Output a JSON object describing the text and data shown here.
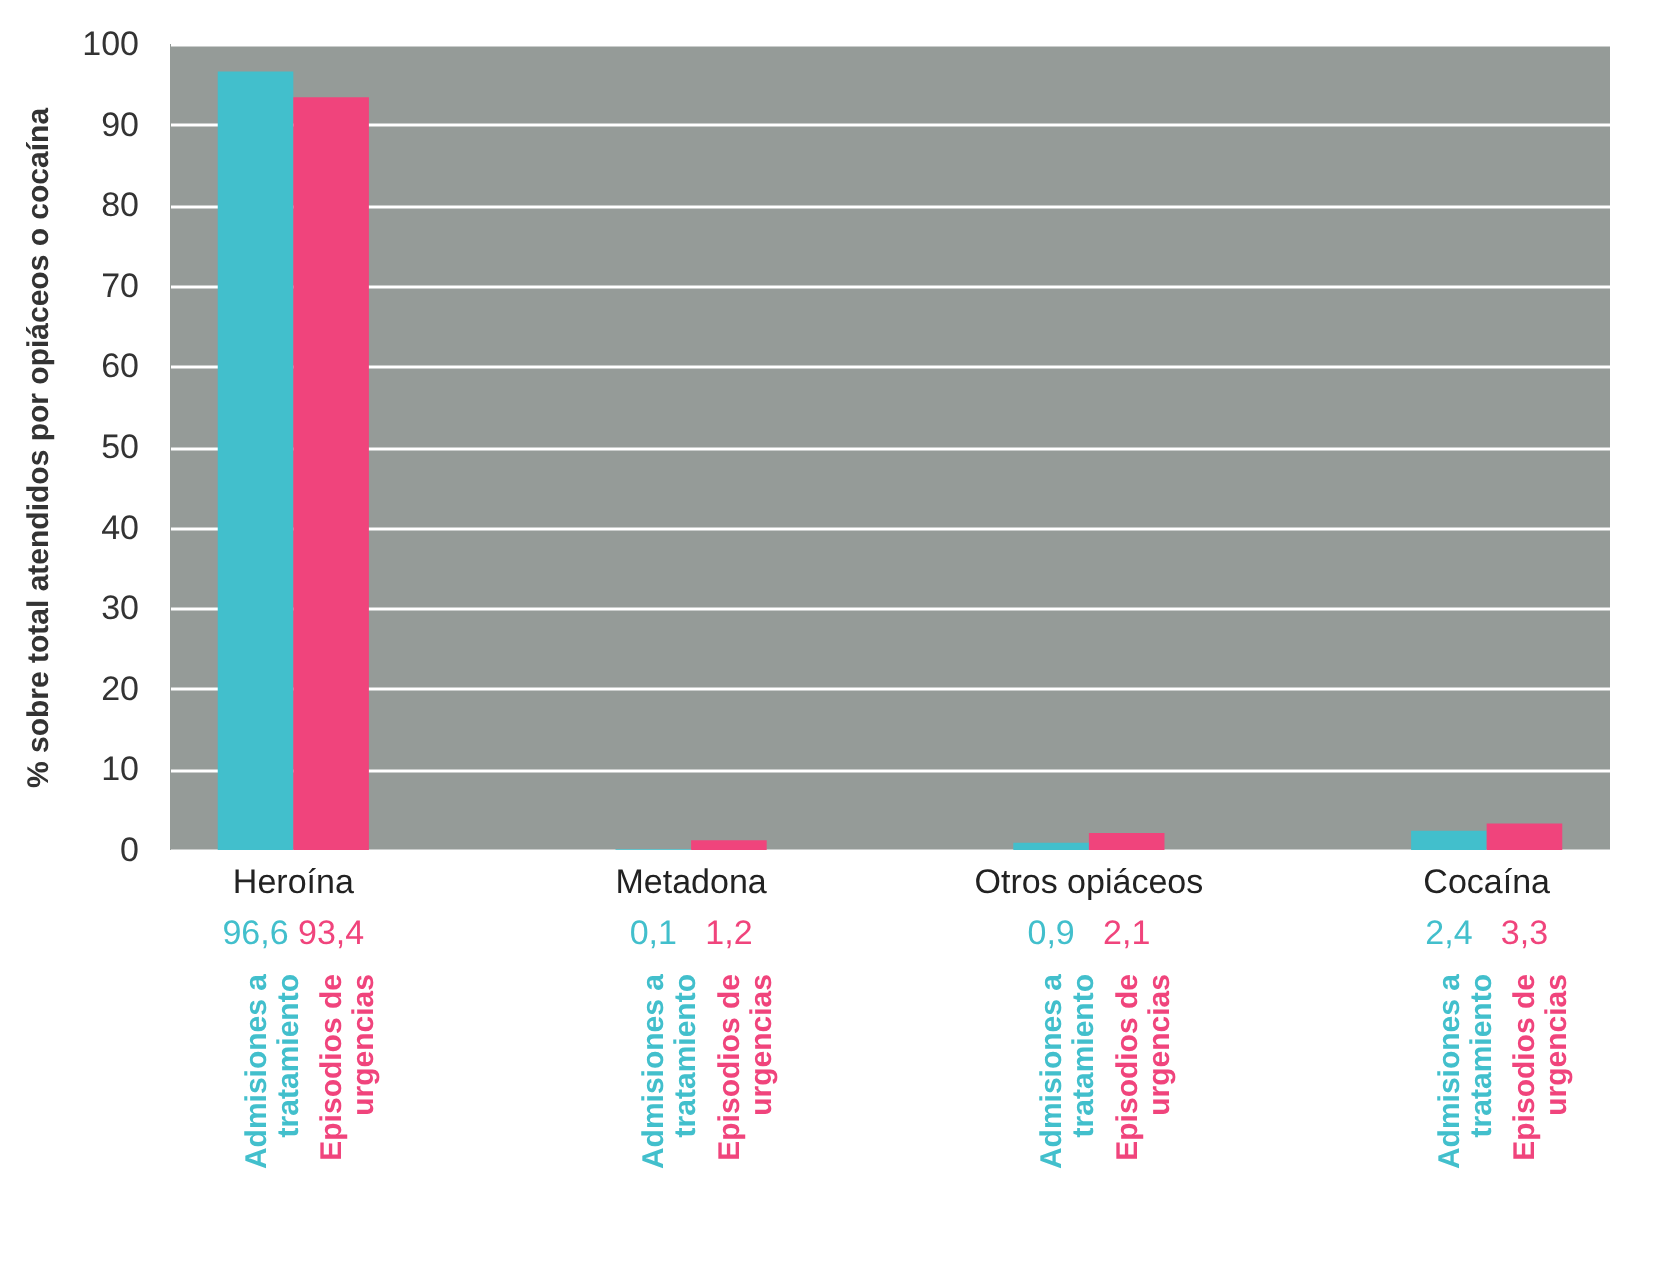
{
  "chart_data": {
    "type": "bar",
    "ylabel": "% sobre total atendidos por opiáceos o cocaína",
    "categories": [
      "Heroína",
      "Metadona",
      "Otros opiáceos",
      "Cocaína"
    ],
    "series": [
      {
        "name": "Admisiones a tratamiento",
        "color": "#42bfcc",
        "values": [
          96.6,
          0.1,
          0.9,
          2.4
        ],
        "value_labels": [
          "96,6",
          "0,1",
          "0,9",
          "2,4"
        ]
      },
      {
        "name": "Episodios de urgencias",
        "color": "#f0447c",
        "values": [
          93.4,
          1.2,
          2.1,
          3.3
        ],
        "value_labels": [
          "93,4",
          "1,2",
          "2,1",
          "3,3"
        ]
      }
    ],
    "ylim": [
      0,
      100
    ],
    "yticks": [
      0,
      10,
      20,
      30,
      40,
      50,
      60,
      70,
      80,
      90,
      100
    ],
    "grid": "y"
  }
}
